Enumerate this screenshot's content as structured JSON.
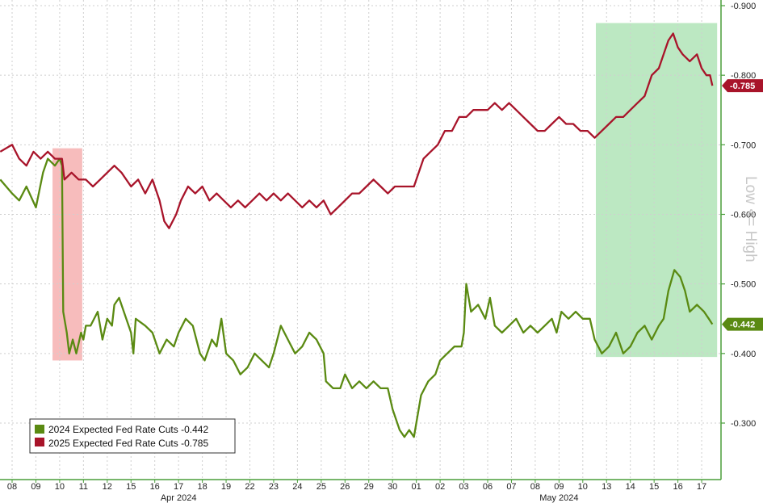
{
  "colors": {
    "series_2024": "#5a8a12",
    "series_2025": "#a8142a",
    "highlight_red": "#f4a6a6",
    "highlight_green": "#8fd99a",
    "grid": "#cfcfcf",
    "axis": "#4a9e3a"
  },
  "chart_data": {
    "type": "line",
    "title": "",
    "xlabel": "",
    "ylabel": "Low <= High",
    "ylim": [
      -0.2,
      -0.9
    ],
    "y_ticks": [
      "-0.300",
      "-0.400",
      "-0.500",
      "-0.600",
      "-0.700",
      "-0.800",
      "-0.900"
    ],
    "x_tick_labels": [
      "08",
      "09",
      "10",
      "11",
      "12",
      "15",
      "16",
      "17",
      "18",
      "19",
      "22",
      "23",
      "24",
      "25",
      "26",
      "29",
      "30",
      "01",
      "02",
      "03",
      "06",
      "07",
      "08",
      "09",
      "10",
      "13",
      "14",
      "15",
      "16",
      "17"
    ],
    "months": [
      {
        "label": "Apr 2024",
        "at_tick": 7
      },
      {
        "label": "May 2024",
        "at_tick": 23
      }
    ],
    "legend": {
      "placement": "bottom-left",
      "entries": [
        {
          "label": "2024 Expected Fed Rate Cuts -0.442",
          "series": 0
        },
        {
          "label": "2025 Expected Fed Rate Cuts -0.785",
          "series": 1
        }
      ]
    },
    "highlights": [
      {
        "x_from": 1.7,
        "x_to": 2.95,
        "y_from": -0.39,
        "y_to": -0.695,
        "color": "red"
      },
      {
        "x_from": 24.55,
        "x_to": 29.65,
        "y_from": -0.395,
        "y_to": -0.875,
        "color": "green"
      }
    ],
    "series": [
      {
        "name": "2024 Expected Fed Rate Cuts",
        "last_label": "-0.442",
        "points": [
          [
            -0.5,
            -0.65
          ],
          [
            0,
            -0.63
          ],
          [
            0.3,
            -0.62
          ],
          [
            0.6,
            -0.64
          ],
          [
            1.0,
            -0.61
          ],
          [
            1.3,
            -0.66
          ],
          [
            1.5,
            -0.68
          ],
          [
            1.8,
            -0.67
          ],
          [
            2.0,
            -0.68
          ],
          [
            2.1,
            -0.67
          ],
          [
            2.15,
            -0.46
          ],
          [
            2.3,
            -0.43
          ],
          [
            2.4,
            -0.4
          ],
          [
            2.55,
            -0.42
          ],
          [
            2.7,
            -0.4
          ],
          [
            2.9,
            -0.43
          ],
          [
            3.0,
            -0.42
          ],
          [
            3.1,
            -0.44
          ],
          [
            3.3,
            -0.44
          ],
          [
            3.6,
            -0.46
          ],
          [
            3.8,
            -0.42
          ],
          [
            4.0,
            -0.45
          ],
          [
            4.2,
            -0.44
          ],
          [
            4.3,
            -0.47
          ],
          [
            4.5,
            -0.48
          ],
          [
            4.7,
            -0.46
          ],
          [
            5.0,
            -0.43
          ],
          [
            5.1,
            -0.4
          ],
          [
            5.2,
            -0.45
          ],
          [
            5.6,
            -0.44
          ],
          [
            5.9,
            -0.43
          ],
          [
            6.2,
            -0.4
          ],
          [
            6.5,
            -0.42
          ],
          [
            6.8,
            -0.41
          ],
          [
            7.0,
            -0.43
          ],
          [
            7.3,
            -0.45
          ],
          [
            7.6,
            -0.44
          ],
          [
            7.9,
            -0.4
          ],
          [
            8.1,
            -0.39
          ],
          [
            8.4,
            -0.42
          ],
          [
            8.6,
            -0.41
          ],
          [
            8.8,
            -0.45
          ],
          [
            9.0,
            -0.4
          ],
          [
            9.3,
            -0.39
          ],
          [
            9.6,
            -0.37
          ],
          [
            9.9,
            -0.38
          ],
          [
            10.2,
            -0.4
          ],
          [
            10.5,
            -0.39
          ],
          [
            10.8,
            -0.38
          ],
          [
            11.0,
            -0.4
          ],
          [
            11.3,
            -0.44
          ],
          [
            11.6,
            -0.42
          ],
          [
            11.9,
            -0.4
          ],
          [
            12.2,
            -0.41
          ],
          [
            12.5,
            -0.43
          ],
          [
            12.8,
            -0.42
          ],
          [
            13.1,
            -0.4
          ],
          [
            13.2,
            -0.36
          ],
          [
            13.5,
            -0.35
          ],
          [
            13.8,
            -0.35
          ],
          [
            14.0,
            -0.37
          ],
          [
            14.3,
            -0.35
          ],
          [
            14.6,
            -0.36
          ],
          [
            14.9,
            -0.35
          ],
          [
            15.2,
            -0.36
          ],
          [
            15.5,
            -0.35
          ],
          [
            15.8,
            -0.35
          ],
          [
            16.0,
            -0.32
          ],
          [
            16.3,
            -0.29
          ],
          [
            16.5,
            -0.28
          ],
          [
            16.7,
            -0.29
          ],
          [
            16.9,
            -0.28
          ],
          [
            17.0,
            -0.3
          ],
          [
            17.2,
            -0.34
          ],
          [
            17.5,
            -0.36
          ],
          [
            17.8,
            -0.37
          ],
          [
            18.0,
            -0.39
          ],
          [
            18.3,
            -0.4
          ],
          [
            18.6,
            -0.41
          ],
          [
            18.9,
            -0.41
          ],
          [
            19.0,
            -0.43
          ],
          [
            19.1,
            -0.5
          ],
          [
            19.3,
            -0.46
          ],
          [
            19.6,
            -0.47
          ],
          [
            19.9,
            -0.45
          ],
          [
            20.1,
            -0.48
          ],
          [
            20.3,
            -0.44
          ],
          [
            20.6,
            -0.43
          ],
          [
            20.9,
            -0.44
          ],
          [
            21.2,
            -0.45
          ],
          [
            21.5,
            -0.43
          ],
          [
            21.8,
            -0.44
          ],
          [
            22.1,
            -0.43
          ],
          [
            22.4,
            -0.44
          ],
          [
            22.7,
            -0.45
          ],
          [
            22.9,
            -0.43
          ],
          [
            23.1,
            -0.46
          ],
          [
            23.4,
            -0.45
          ],
          [
            23.7,
            -0.46
          ],
          [
            24.0,
            -0.45
          ],
          [
            24.3,
            -0.45
          ],
          [
            24.5,
            -0.42
          ],
          [
            24.8,
            -0.4
          ],
          [
            25.1,
            -0.41
          ],
          [
            25.4,
            -0.43
          ],
          [
            25.7,
            -0.4
          ],
          [
            26.0,
            -0.41
          ],
          [
            26.3,
            -0.43
          ],
          [
            26.6,
            -0.44
          ],
          [
            26.9,
            -0.42
          ],
          [
            27.2,
            -0.44
          ],
          [
            27.4,
            -0.45
          ],
          [
            27.6,
            -0.49
          ],
          [
            27.85,
            -0.52
          ],
          [
            28.1,
            -0.51
          ],
          [
            28.3,
            -0.49
          ],
          [
            28.5,
            -0.46
          ],
          [
            28.8,
            -0.47
          ],
          [
            29.1,
            -0.46
          ],
          [
            29.3,
            -0.45
          ],
          [
            29.45,
            -0.442
          ]
        ]
      },
      {
        "name": "2025 Expected Fed Rate Cuts",
        "last_label": "-0.785",
        "points": [
          [
            -0.5,
            -0.69
          ],
          [
            0,
            -0.7
          ],
          [
            0.3,
            -0.68
          ],
          [
            0.6,
            -0.67
          ],
          [
            0.9,
            -0.69
          ],
          [
            1.2,
            -0.68
          ],
          [
            1.5,
            -0.69
          ],
          [
            1.8,
            -0.68
          ],
          [
            2.0,
            -0.68
          ],
          [
            2.1,
            -0.68
          ],
          [
            2.2,
            -0.65
          ],
          [
            2.5,
            -0.66
          ],
          [
            2.8,
            -0.65
          ],
          [
            3.1,
            -0.65
          ],
          [
            3.4,
            -0.64
          ],
          [
            3.7,
            -0.65
          ],
          [
            4.0,
            -0.66
          ],
          [
            4.3,
            -0.67
          ],
          [
            4.6,
            -0.66
          ],
          [
            5.0,
            -0.64
          ],
          [
            5.3,
            -0.65
          ],
          [
            5.6,
            -0.63
          ],
          [
            5.9,
            -0.65
          ],
          [
            6.2,
            -0.62
          ],
          [
            6.4,
            -0.59
          ],
          [
            6.6,
            -0.58
          ],
          [
            6.9,
            -0.6
          ],
          [
            7.1,
            -0.62
          ],
          [
            7.4,
            -0.64
          ],
          [
            7.7,
            -0.63
          ],
          [
            8.0,
            -0.64
          ],
          [
            8.3,
            -0.62
          ],
          [
            8.6,
            -0.63
          ],
          [
            8.9,
            -0.62
          ],
          [
            9.2,
            -0.61
          ],
          [
            9.5,
            -0.62
          ],
          [
            9.8,
            -0.61
          ],
          [
            10.1,
            -0.62
          ],
          [
            10.4,
            -0.63
          ],
          [
            10.7,
            -0.62
          ],
          [
            11.0,
            -0.63
          ],
          [
            11.3,
            -0.62
          ],
          [
            11.6,
            -0.63
          ],
          [
            11.9,
            -0.62
          ],
          [
            12.2,
            -0.61
          ],
          [
            12.5,
            -0.62
          ],
          [
            12.8,
            -0.61
          ],
          [
            13.1,
            -0.62
          ],
          [
            13.4,
            -0.6
          ],
          [
            13.7,
            -0.61
          ],
          [
            14.0,
            -0.62
          ],
          [
            14.3,
            -0.63
          ],
          [
            14.6,
            -0.63
          ],
          [
            14.9,
            -0.64
          ],
          [
            15.2,
            -0.65
          ],
          [
            15.5,
            -0.64
          ],
          [
            15.8,
            -0.63
          ],
          [
            16.1,
            -0.64
          ],
          [
            16.4,
            -0.64
          ],
          [
            16.7,
            -0.64
          ],
          [
            16.9,
            -0.64
          ],
          [
            17.1,
            -0.66
          ],
          [
            17.3,
            -0.68
          ],
          [
            17.6,
            -0.69
          ],
          [
            17.9,
            -0.7
          ],
          [
            18.2,
            -0.72
          ],
          [
            18.5,
            -0.72
          ],
          [
            18.8,
            -0.74
          ],
          [
            19.1,
            -0.74
          ],
          [
            19.4,
            -0.75
          ],
          [
            19.7,
            -0.75
          ],
          [
            20.0,
            -0.75
          ],
          [
            20.3,
            -0.76
          ],
          [
            20.6,
            -0.75
          ],
          [
            20.9,
            -0.76
          ],
          [
            21.2,
            -0.75
          ],
          [
            21.5,
            -0.74
          ],
          [
            21.8,
            -0.73
          ],
          [
            22.1,
            -0.72
          ],
          [
            22.4,
            -0.72
          ],
          [
            22.7,
            -0.73
          ],
          [
            23.0,
            -0.74
          ],
          [
            23.3,
            -0.73
          ],
          [
            23.6,
            -0.73
          ],
          [
            23.9,
            -0.72
          ],
          [
            24.2,
            -0.72
          ],
          [
            24.5,
            -0.71
          ],
          [
            24.8,
            -0.72
          ],
          [
            25.1,
            -0.73
          ],
          [
            25.4,
            -0.74
          ],
          [
            25.7,
            -0.74
          ],
          [
            26.0,
            -0.75
          ],
          [
            26.3,
            -0.76
          ],
          [
            26.6,
            -0.77
          ],
          [
            26.9,
            -0.8
          ],
          [
            27.2,
            -0.81
          ],
          [
            27.4,
            -0.83
          ],
          [
            27.6,
            -0.85
          ],
          [
            27.8,
            -0.86
          ],
          [
            28.0,
            -0.84
          ],
          [
            28.2,
            -0.83
          ],
          [
            28.5,
            -0.82
          ],
          [
            28.8,
            -0.83
          ],
          [
            29.0,
            -0.81
          ],
          [
            29.2,
            -0.8
          ],
          [
            29.35,
            -0.8
          ],
          [
            29.45,
            -0.785
          ]
        ]
      }
    ]
  }
}
